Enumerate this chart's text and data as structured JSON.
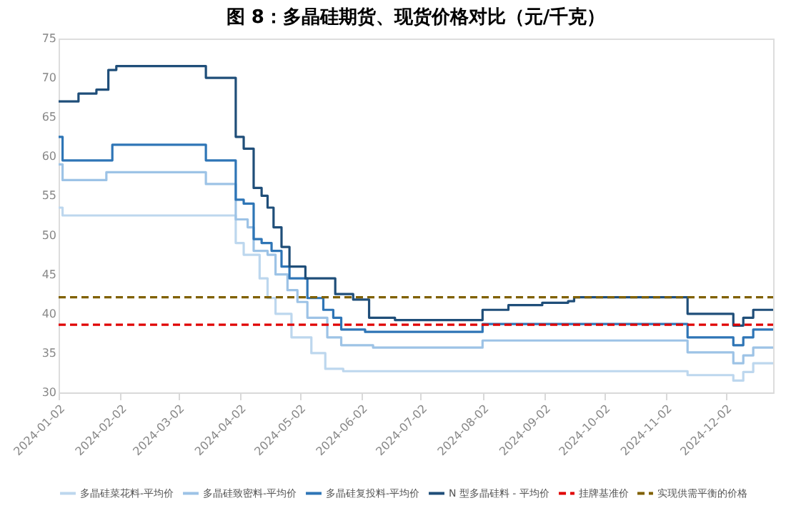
{
  "chart_data": {
    "type": "step",
    "title": "图 8：多晶硅期货、现货价格对比（元/千克）",
    "xlim": [
      "2024-01-02",
      "2024-12-26"
    ],
    "xticks": [
      "2024-01-02",
      "2024-02-02",
      "2024-03-02",
      "2024-04-02",
      "2024-05-02",
      "2024-06-02",
      "2024-07-02",
      "2024-08-02",
      "2024-09-02",
      "2024-10-02",
      "2024-11-02",
      "2024-12-02"
    ],
    "ylim": [
      30,
      75
    ],
    "yticks": [
      30,
      35,
      40,
      45,
      50,
      55,
      60,
      65,
      70,
      75
    ],
    "grid": false,
    "legend": "bottom",
    "series": [
      {
        "name": "多晶硅菜花料-平均价",
        "color": "#bdd7ee",
        "x": [
          "2024-01-02",
          "2024-01-04",
          "2024-03-29",
          "2024-03-31",
          "2024-04-04",
          "2024-04-08",
          "2024-04-12",
          "2024-04-16",
          "2024-04-20",
          "2024-04-28",
          "2024-05-03",
          "2024-05-08",
          "2024-05-15",
          "2024-05-24",
          "2024-11-13",
          "2024-12-06",
          "2024-12-11",
          "2024-12-16",
          "2024-12-26"
        ],
        "values": [
          53.5,
          52.5,
          52.5,
          49,
          47.5,
          47.5,
          44.5,
          42,
          40,
          37,
          37,
          35,
          33,
          32.7,
          32.2,
          31.5,
          32.6,
          33.7,
          33.7
        ]
      },
      {
        "name": "多晶硅致密料-平均价",
        "color": "#9dc3e6",
        "x": [
          "2024-01-02",
          "2024-01-04",
          "2024-01-26",
          "2024-03-16",
          "2024-03-29",
          "2024-03-31",
          "2024-04-06",
          "2024-04-09",
          "2024-04-16",
          "2024-04-20",
          "2024-04-26",
          "2024-05-01",
          "2024-05-06",
          "2024-05-14",
          "2024-05-16",
          "2024-05-23",
          "2024-06-08",
          "2024-08-02",
          "2024-11-13",
          "2024-12-06",
          "2024-12-11",
          "2024-12-16",
          "2024-12-26"
        ],
        "values": [
          59,
          57,
          58,
          56.5,
          56.5,
          52,
          51,
          48,
          47.5,
          45,
          43,
          41.5,
          39.5,
          39.5,
          37,
          36,
          35.7,
          36.6,
          35.1,
          33.7,
          34.7,
          35.7,
          35.7
        ]
      },
      {
        "name": "多晶硅复投料-平均价",
        "color": "#2e75b6",
        "x": [
          "2024-01-02",
          "2024-01-04",
          "2024-01-29",
          "2024-03-16",
          "2024-03-29",
          "2024-03-31",
          "2024-04-04",
          "2024-04-09",
          "2024-04-13",
          "2024-04-18",
          "2024-04-23",
          "2024-04-27",
          "2024-05-06",
          "2024-05-11",
          "2024-05-14",
          "2024-05-19",
          "2024-05-23",
          "2024-06-04",
          "2024-08-02",
          "2024-11-13",
          "2024-12-06",
          "2024-12-11",
          "2024-12-16",
          "2024-12-26"
        ],
        "values": [
          62.5,
          59.5,
          61.5,
          59.5,
          59.5,
          54.5,
          54,
          49.5,
          49,
          48,
          46,
          44.5,
          42,
          42,
          40.5,
          39.5,
          38,
          37.7,
          38.7,
          37,
          36,
          37,
          38,
          38
        ]
      },
      {
        "name": "N 型多晶硅料 - 平均价",
        "color": "#1f4e79",
        "x": [
          "2024-01-02",
          "2024-01-12",
          "2024-01-21",
          "2024-01-27",
          "2024-01-31",
          "2024-03-16",
          "2024-03-29",
          "2024-03-31",
          "2024-04-04",
          "2024-04-09",
          "2024-04-13",
          "2024-04-16",
          "2024-04-19",
          "2024-04-23",
          "2024-04-27",
          "2024-05-05",
          "2024-05-12",
          "2024-05-20",
          "2024-05-29",
          "2024-06-06",
          "2024-06-19",
          "2024-08-02",
          "2024-08-15",
          "2024-09-01",
          "2024-09-14",
          "2024-09-17",
          "2024-11-13",
          "2024-12-06",
          "2024-12-11",
          "2024-12-16",
          "2024-12-26"
        ],
        "values": [
          67,
          68,
          68.5,
          71,
          71.5,
          70,
          70,
          62.5,
          61,
          56,
          55,
          53.5,
          51,
          48.5,
          46,
          44.5,
          44.5,
          42.5,
          41.8,
          39.5,
          39.2,
          40.5,
          41.1,
          41.4,
          41.6,
          42.1,
          40,
          38.5,
          39.5,
          40.5,
          40.5
        ]
      },
      {
        "name": "挂牌基准价",
        "type": "line",
        "line_style": "dashed",
        "color": "#e00000",
        "x": [
          "2024-01-02",
          "2024-12-26"
        ],
        "values": [
          38.6,
          38.6
        ]
      },
      {
        "name": "实现供需平衡的价格",
        "type": "line",
        "line_style": "dashed",
        "color": "#806000",
        "x": [
          "2024-01-02",
          "2024-12-26"
        ],
        "values": [
          42.1,
          42.1
        ]
      }
    ]
  }
}
